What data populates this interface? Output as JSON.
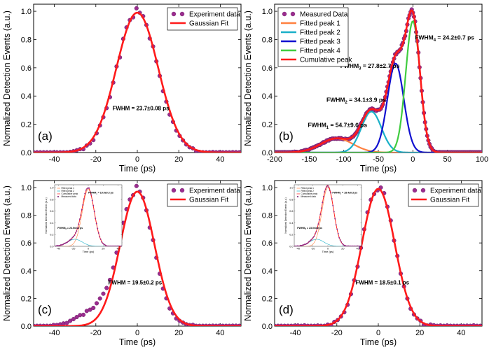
{
  "colors": {
    "marker_fill": "#9b2d8f",
    "marker_edge": "#6a1a62",
    "fit": "#ff1a1a",
    "peak1": "#ff8040",
    "peak2": "#1ab0c8",
    "peak3": "#1010d0",
    "peak4": "#40cc40"
  },
  "chart_data": [
    {
      "type": "scatter",
      "panel_label": "(a)",
      "xlabel": "Time (ps)",
      "ylabel": "Normalized Detection Events (a.u.)",
      "xlim": [
        -50,
        50
      ],
      "ylim": [
        0,
        1.05
      ],
      "xticks": [
        -40,
        -20,
        0,
        20,
        40
      ],
      "yticks": [
        0.0,
        0.2,
        0.4,
        0.6,
        0.8,
        1.0
      ],
      "legend": {
        "placement": "top-right",
        "entries": [
          "Experiment data",
          "Gaussian Fit"
        ]
      },
      "annotation": {
        "text": "FWHM = 23.7±0.08 ps",
        "x": -12,
        "y": 0.3
      },
      "series": [
        {
          "name": "Experiment data",
          "kind": "markers",
          "peaks": [
            {
              "center": 0,
              "fwhm": 23.0,
              "amplitude": 1.0
            }
          ],
          "noise": 0.02
        },
        {
          "name": "Gaussian Fit",
          "kind": "line",
          "peaks": [
            {
              "center": 0,
              "fwhm": 23.7,
              "amplitude": 0.99
            }
          ]
        }
      ]
    },
    {
      "type": "line",
      "panel_label": "(b)",
      "xlabel": "Time (ps)",
      "ylabel": "Normalized Detection Events (a.u.)",
      "xlim": [
        -200,
        100
      ],
      "ylim": [
        0,
        1.05
      ],
      "xticks": [
        -200,
        -150,
        -100,
        -50,
        0,
        50,
        100
      ],
      "yticks": [
        0.0,
        0.2,
        0.4,
        0.6,
        0.8,
        1.0
      ],
      "legend": {
        "placement": "top-left",
        "entries": [
          "Measured Data",
          "Fitted peak 1",
          "Fitted peak 2",
          "Fitted peak 3",
          "Fitted peak 4",
          "Cumulative peak"
        ]
      },
      "annotations": [
        {
          "text": "FWHM",
          "sub": "1",
          "rest": " = 54.7±9.6 ps",
          "x": -152,
          "y": 0.18
        },
        {
          "text": "FWHM",
          "sub": "2",
          "rest": " = 34.1±3.9 ps",
          "x": -125,
          "y": 0.36
        },
        {
          "text": "FWHM",
          "sub": "3",
          "rest": " = 27.8±2.7 ps",
          "x": -105,
          "y": 0.6
        },
        {
          "text": "FWHM",
          "sub": "4",
          "rest": " = 24.2±0.7 ps",
          "x": 3,
          "y": 0.8
        }
      ],
      "series": [
        {
          "name": "Measured Data",
          "kind": "markers",
          "peaks": [
            {
              "center": -110,
              "fwhm": 54.7,
              "amplitude": 0.1
            },
            {
              "center": -60,
              "fwhm": 34.1,
              "amplitude": 0.29
            },
            {
              "center": -25,
              "fwhm": 27.8,
              "amplitude": 0.63
            },
            {
              "center": 0,
              "fwhm": 24.2,
              "amplitude": 0.93
            }
          ],
          "noise": 0.01
        },
        {
          "name": "Fitted peak 1",
          "kind": "line",
          "peaks": [
            {
              "center": -110,
              "fwhm": 54.7,
              "amplitude": 0.1
            }
          ]
        },
        {
          "name": "Fitted peak 2",
          "kind": "line",
          "peaks": [
            {
              "center": -60,
              "fwhm": 34.1,
              "amplitude": 0.29
            }
          ]
        },
        {
          "name": "Fitted peak 3",
          "kind": "line",
          "peaks": [
            {
              "center": -25,
              "fwhm": 27.8,
              "amplitude": 0.63
            }
          ]
        },
        {
          "name": "Fitted peak 4",
          "kind": "line",
          "peaks": [
            {
              "center": 0,
              "fwhm": 24.2,
              "amplitude": 0.93
            }
          ]
        },
        {
          "name": "Cumulative peak",
          "kind": "line",
          "peaks": [
            {
              "center": -110,
              "fwhm": 54.7,
              "amplitude": 0.1
            },
            {
              "center": -60,
              "fwhm": 34.1,
              "amplitude": 0.29
            },
            {
              "center": -25,
              "fwhm": 27.8,
              "amplitude": 0.63
            },
            {
              "center": 0,
              "fwhm": 24.2,
              "amplitude": 0.93
            }
          ]
        }
      ]
    },
    {
      "type": "scatter",
      "panel_label": "(c)",
      "xlabel": "Time (ps)",
      "ylabel": "Normalized Detection Events (a.u.)",
      "xlim": [
        -50,
        50
      ],
      "ylim": [
        0,
        1.05
      ],
      "xticks": [
        -40,
        -20,
        0,
        20,
        40
      ],
      "yticks": [
        0.0,
        0.2,
        0.4,
        0.6,
        0.8,
        1.0
      ],
      "legend": {
        "placement": "top-right",
        "entries": [
          "Experiment data",
          "Gaussian Fit"
        ]
      },
      "annotation": {
        "text": "FWHM = 19.5±0.2 ps",
        "x": -14,
        "y": 0.3
      },
      "series": [
        {
          "name": "Experiment data",
          "kind": "markers",
          "peaks": [
            {
              "center": 0,
              "fwhm": 18.5,
              "amplitude": 0.97
            },
            {
              "center": -18,
              "fwhm": 22.0,
              "amplitude": 0.12
            }
          ],
          "noise": 0.02
        },
        {
          "name": "Gaussian Fit",
          "kind": "line",
          "peaks": [
            {
              "center": 0,
              "fwhm": 19.5,
              "amplitude": 0.97
            }
          ]
        }
      ],
      "inset": {
        "xlim": [
          -45,
          45
        ],
        "ylim": [
          0,
          1.05
        ],
        "xticks": [
          -40,
          -20,
          0,
          20,
          40
        ],
        "yticks": [
          0.0,
          0.2,
          0.4,
          0.6,
          0.8,
          1.0
        ],
        "xlabel": "Time (ps)",
        "ylabel": "Normalized Detection Events (a.u.)",
        "legend_entries": [
          "Fitted peak 1",
          "Fitted peak 2",
          "Cumulative peak",
          "Measured data"
        ],
        "annotations": [
          {
            "text": "FWHM",
            "sub": "1",
            "rest": " = 19.0±0.3 ps",
            "x": 0,
            "y": 0.9
          },
          {
            "text": "FWHM",
            "sub": "2",
            "rest": " = 23.5±2.9 ps",
            "x": -41,
            "y": 0.3
          }
        ],
        "series": [
          {
            "name": "Fitted peak 1",
            "kind": "line",
            "peaks": [
              {
                "center": 0,
                "fwhm": 19.0,
                "amplitude": 0.97
              }
            ]
          },
          {
            "name": "Fitted peak 2",
            "kind": "line",
            "peaks": [
              {
                "center": -18,
                "fwhm": 23.5,
                "amplitude": 0.12
              }
            ]
          },
          {
            "name": "Cumulative peak",
            "kind": "line",
            "peaks": [
              {
                "center": 0,
                "fwhm": 19.0,
                "amplitude": 0.97
              },
              {
                "center": -18,
                "fwhm": 23.5,
                "amplitude": 0.12
              }
            ]
          },
          {
            "name": "Measured data",
            "kind": "markers",
            "peaks": [
              {
                "center": 0,
                "fwhm": 19.0,
                "amplitude": 0.97
              },
              {
                "center": -18,
                "fwhm": 23.5,
                "amplitude": 0.12
              }
            ],
            "noise": 0.015
          }
        ]
      }
    },
    {
      "type": "scatter",
      "panel_label": "(d)",
      "xlabel": "Time (ps)",
      "ylabel": "Normalized Detection Events (a.u.)",
      "xlim": [
        -50,
        50
      ],
      "ylim": [
        0,
        1.05
      ],
      "xticks": [
        -40,
        -20,
        0,
        20,
        40
      ],
      "yticks": [
        0.0,
        0.2,
        0.4,
        0.6,
        0.8,
        1.0
      ],
      "legend": {
        "placement": "top-right",
        "entries": [
          "Experiment data",
          "Gaussian Fit"
        ]
      },
      "annotation": {
        "text": "FWHM = 18.5±0.1 ps",
        "x": -11,
        "y": 0.3
      },
      "series": [
        {
          "name": "Experiment data",
          "kind": "markers",
          "peaks": [
            {
              "center": 0,
              "fwhm": 18.3,
              "amplitude": 1.0
            }
          ],
          "noise": 0.02
        },
        {
          "name": "Gaussian Fit",
          "kind": "line",
          "peaks": [
            {
              "center": 0,
              "fwhm": 18.5,
              "amplitude": 0.99
            }
          ]
        }
      ],
      "inset": {
        "xlim": [
          -45,
          45
        ],
        "ylim": [
          0,
          1.05
        ],
        "xticks": [
          -40,
          -20,
          0,
          20,
          40
        ],
        "yticks": [
          0.0,
          0.2,
          0.4,
          0.6,
          0.8,
          1.0
        ],
        "xlabel": "Time (ps)",
        "ylabel": "Normalized Detection Events (a.u.)",
        "legend_entries": [
          "Fitted peak 1",
          "Fitted peak 2",
          "Cumulative peak",
          "Measured data"
        ],
        "annotations": [
          {
            "text": "FWHM",
            "sub": "1",
            "rest": " = 18.4±0.3 ps",
            "x": 6,
            "y": 0.9
          },
          {
            "text": "FWHM",
            "sub": "2",
            "rest": " = 23.0±3.9 ps",
            "x": -41,
            "y": 0.3
          }
        ],
        "series": [
          {
            "name": "Fitted peak 1",
            "kind": "line",
            "peaks": [
              {
                "center": 0,
                "fwhm": 18.4,
                "amplitude": 1.0
              }
            ]
          },
          {
            "name": "Fitted peak 2",
            "kind": "line",
            "peaks": [
              {
                "center": -15,
                "fwhm": 23.0,
                "amplitude": 0.12
              }
            ]
          },
          {
            "name": "Cumulative peak",
            "kind": "line",
            "peaks": [
              {
                "center": 0,
                "fwhm": 18.4,
                "amplitude": 1.0
              },
              {
                "center": -15,
                "fwhm": 23.0,
                "amplitude": 0.12
              }
            ]
          },
          {
            "name": "Measured data",
            "kind": "markers",
            "peaks": [
              {
                "center": 0,
                "fwhm": 18.4,
                "amplitude": 1.0
              },
              {
                "center": -15,
                "fwhm": 23.0,
                "amplitude": 0.12
              }
            ],
            "noise": 0.015
          }
        ]
      }
    }
  ]
}
